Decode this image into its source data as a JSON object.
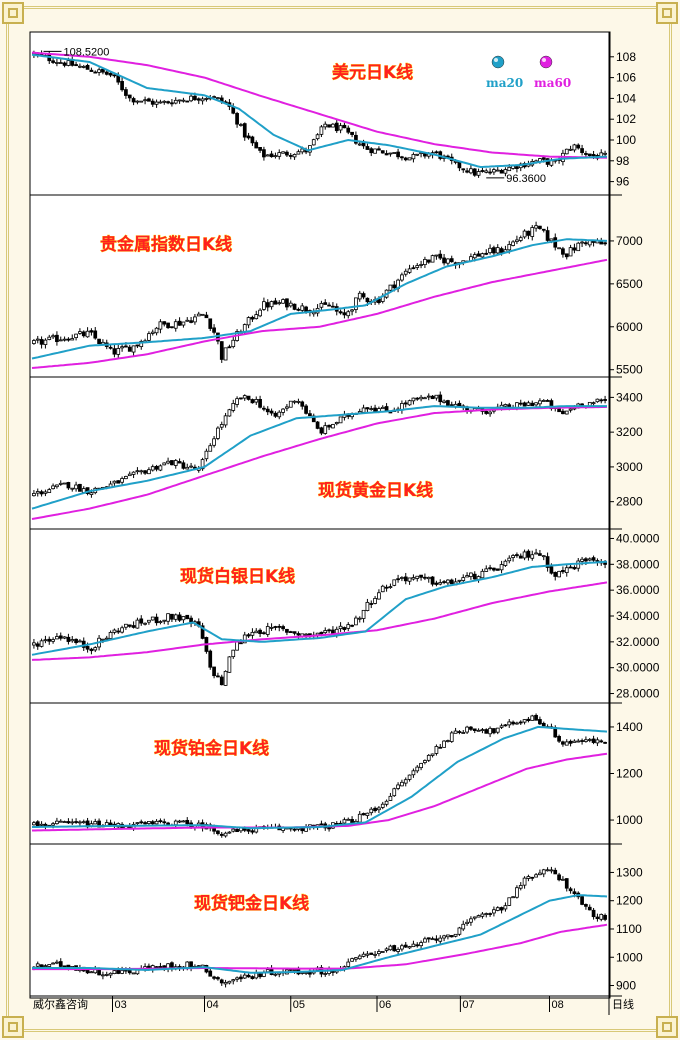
{
  "source_label": "威尔鑫咨询",
  "x_unit_label": "日线",
  "legend": [
    {
      "name": "ma20",
      "color": "#20a0c8"
    },
    {
      "name": "ma60",
      "color": "#e020e0"
    }
  ],
  "colors": {
    "candle": "#000000",
    "ma20": "#20a0c8",
    "ma60": "#e020e0",
    "title": "#ff2020"
  },
  "chart_data": [
    {
      "type": "candlestick",
      "title": "美元日K线",
      "ylim": [
        95,
        110
      ],
      "yticks": [
        96,
        98,
        100,
        102,
        104,
        106,
        108
      ],
      "annotations": [
        {
          "text": "108.5200",
          "x": 0.02,
          "y": 108.52
        },
        {
          "text": "96.3600",
          "x": 0.79,
          "y": 96.36
        }
      ],
      "close_path": [
        [
          0,
          108.3
        ],
        [
          0.05,
          107.5
        ],
        [
          0.1,
          106.8
        ],
        [
          0.14,
          106.2
        ],
        [
          0.17,
          104.0
        ],
        [
          0.22,
          103.5
        ],
        [
          0.27,
          104.0
        ],
        [
          0.31,
          104.2
        ],
        [
          0.34,
          103.5
        ],
        [
          0.37,
          100.5
        ],
        [
          0.4,
          98.5
        ],
        [
          0.44,
          98.7
        ],
        [
          0.48,
          99.0
        ],
        [
          0.51,
          101.5
        ],
        [
          0.54,
          101.0
        ],
        [
          0.58,
          99.2
        ],
        [
          0.62,
          98.8
        ],
        [
          0.66,
          98.3
        ],
        [
          0.7,
          98.8
        ],
        [
          0.73,
          97.8
        ],
        [
          0.77,
          96.8
        ],
        [
          0.8,
          96.9
        ],
        [
          0.84,
          97.5
        ],
        [
          0.88,
          98.0
        ],
        [
          0.91,
          97.8
        ],
        [
          0.94,
          99.5
        ],
        [
          0.97,
          98.5
        ],
        [
          1,
          98.4
        ]
      ],
      "ma20_path": [
        [
          0,
          108.2
        ],
        [
          0.1,
          107.5
        ],
        [
          0.2,
          105.0
        ],
        [
          0.3,
          104.3
        ],
        [
          0.36,
          103.0
        ],
        [
          0.42,
          100.5
        ],
        [
          0.48,
          99.0
        ],
        [
          0.55,
          100.0
        ],
        [
          0.62,
          99.5
        ],
        [
          0.7,
          98.6
        ],
        [
          0.78,
          97.4
        ],
        [
          0.85,
          97.6
        ],
        [
          0.92,
          98.2
        ],
        [
          1,
          98.4
        ]
      ],
      "ma60_path": [
        [
          0,
          108.4
        ],
        [
          0.1,
          108.0
        ],
        [
          0.2,
          107.2
        ],
        [
          0.3,
          106.0
        ],
        [
          0.4,
          104.2
        ],
        [
          0.5,
          102.5
        ],
        [
          0.6,
          100.8
        ],
        [
          0.7,
          99.6
        ],
        [
          0.8,
          98.8
        ],
        [
          0.9,
          98.4
        ],
        [
          1,
          98.3
        ]
      ]
    },
    {
      "type": "candlestick",
      "title": "贵金属指数日K线",
      "ylim": [
        5450,
        7500
      ],
      "yticks": [
        5500,
        6000,
        6500,
        7000
      ],
      "close_path": [
        [
          0,
          5800
        ],
        [
          0.05,
          5870
        ],
        [
          0.1,
          5920
        ],
        [
          0.14,
          5700
        ],
        [
          0.18,
          5780
        ],
        [
          0.22,
          6020
        ],
        [
          0.26,
          6050
        ],
        [
          0.3,
          6150
        ],
        [
          0.32,
          5900
        ],
        [
          0.33,
          5650
        ],
        [
          0.35,
          5850
        ],
        [
          0.4,
          6250
        ],
        [
          0.44,
          6280
        ],
        [
          0.48,
          6200
        ],
        [
          0.52,
          6250
        ],
        [
          0.54,
          6100
        ],
        [
          0.57,
          6350
        ],
        [
          0.6,
          6300
        ],
        [
          0.63,
          6500
        ],
        [
          0.66,
          6700
        ],
        [
          0.7,
          6800
        ],
        [
          0.74,
          6750
        ],
        [
          0.78,
          6850
        ],
        [
          0.82,
          6900
        ],
        [
          0.85,
          7050
        ],
        [
          0.88,
          7150
        ],
        [
          0.91,
          6950
        ],
        [
          0.93,
          6850
        ],
        [
          0.96,
          7000
        ],
        [
          1,
          6950
        ]
      ],
      "ma20_path": [
        [
          0,
          5630
        ],
        [
          0.1,
          5780
        ],
        [
          0.2,
          5820
        ],
        [
          0.3,
          5870
        ],
        [
          0.38,
          5950
        ],
        [
          0.45,
          6150
        ],
        [
          0.52,
          6200
        ],
        [
          0.58,
          6250
        ],
        [
          0.65,
          6500
        ],
        [
          0.72,
          6700
        ],
        [
          0.8,
          6820
        ],
        [
          0.87,
          6950
        ],
        [
          0.93,
          7020
        ],
        [
          1,
          7000
        ]
      ],
      "ma60_path": [
        [
          0,
          5520
        ],
        [
          0.1,
          5580
        ],
        [
          0.2,
          5680
        ],
        [
          0.3,
          5830
        ],
        [
          0.4,
          5950
        ],
        [
          0.5,
          6000
        ],
        [
          0.6,
          6150
        ],
        [
          0.7,
          6350
        ],
        [
          0.8,
          6520
        ],
        [
          0.9,
          6650
        ],
        [
          1,
          6780
        ]
      ]
    },
    {
      "type": "candlestick",
      "title": "现货黄金日K线",
      "ylim": [
        2660,
        3500
      ],
      "yticks": [
        2800,
        3000,
        3200,
        3400
      ],
      "close_path": [
        [
          0,
          2840
        ],
        [
          0.06,
          2900
        ],
        [
          0.1,
          2860
        ],
        [
          0.14,
          2900
        ],
        [
          0.19,
          2970
        ],
        [
          0.24,
          3030
        ],
        [
          0.29,
          2980
        ],
        [
          0.32,
          3200
        ],
        [
          0.36,
          3400
        ],
        [
          0.39,
          3380
        ],
        [
          0.42,
          3280
        ],
        [
          0.46,
          3400
        ],
        [
          0.5,
          3200
        ],
        [
          0.54,
          3280
        ],
        [
          0.58,
          3350
        ],
        [
          0.62,
          3320
        ],
        [
          0.66,
          3380
        ],
        [
          0.7,
          3400
        ],
        [
          0.74,
          3350
        ],
        [
          0.78,
          3320
        ],
        [
          0.82,
          3340
        ],
        [
          0.86,
          3360
        ],
        [
          0.89,
          3380
        ],
        [
          0.92,
          3300
        ],
        [
          0.95,
          3360
        ],
        [
          1,
          3380
        ]
      ],
      "ma20_path": [
        [
          0,
          2760
        ],
        [
          0.1,
          2860
        ],
        [
          0.2,
          2920
        ],
        [
          0.3,
          3000
        ],
        [
          0.38,
          3180
        ],
        [
          0.46,
          3280
        ],
        [
          0.54,
          3300
        ],
        [
          0.62,
          3320
        ],
        [
          0.7,
          3350
        ],
        [
          0.78,
          3340
        ],
        [
          0.86,
          3340
        ],
        [
          0.93,
          3350
        ],
        [
          1,
          3350
        ]
      ],
      "ma60_path": [
        [
          0,
          2700
        ],
        [
          0.1,
          2760
        ],
        [
          0.2,
          2840
        ],
        [
          0.3,
          2950
        ],
        [
          0.4,
          3060
        ],
        [
          0.5,
          3160
        ],
        [
          0.6,
          3250
        ],
        [
          0.7,
          3310
        ],
        [
          0.8,
          3330
        ],
        [
          0.9,
          3340
        ],
        [
          1,
          3345
        ]
      ]
    },
    {
      "type": "candlestick",
      "title": "现货白银日K线",
      "ylim": [
        27.5,
        40.5
      ],
      "yticks": [
        28.0,
        30.0,
        32.0,
        34.0,
        36.0,
        38.0,
        40.0
      ],
      "ytick_labels": [
        "28.0000",
        "30.0000",
        "32.0000",
        "34.0000",
        "36.0000",
        "38.0000",
        "40.0000"
      ],
      "close_path": [
        [
          0,
          31.8
        ],
        [
          0.05,
          32.5
        ],
        [
          0.1,
          31.5
        ],
        [
          0.15,
          33.0
        ],
        [
          0.2,
          33.6
        ],
        [
          0.25,
          34.0
        ],
        [
          0.29,
          33.2
        ],
        [
          0.31,
          30.0
        ],
        [
          0.33,
          28.8
        ],
        [
          0.35,
          31.5
        ],
        [
          0.38,
          32.8
        ],
        [
          0.43,
          33.0
        ],
        [
          0.48,
          32.5
        ],
        [
          0.52,
          32.8
        ],
        [
          0.56,
          33.5
        ],
        [
          0.6,
          35.8
        ],
        [
          0.64,
          37.0
        ],
        [
          0.68,
          36.8
        ],
        [
          0.72,
          36.5
        ],
        [
          0.76,
          37.0
        ],
        [
          0.8,
          37.5
        ],
        [
          0.84,
          38.5
        ],
        [
          0.88,
          39.0
        ],
        [
          0.91,
          37.2
        ],
        [
          0.94,
          37.8
        ],
        [
          0.97,
          38.6
        ],
        [
          1,
          38.2
        ]
      ],
      "ma20_path": [
        [
          0,
          31.0
        ],
        [
          0.1,
          31.8
        ],
        [
          0.2,
          32.8
        ],
        [
          0.28,
          33.5
        ],
        [
          0.33,
          32.2
        ],
        [
          0.4,
          32.0
        ],
        [
          0.5,
          32.3
        ],
        [
          0.58,
          32.8
        ],
        [
          0.65,
          35.3
        ],
        [
          0.72,
          36.3
        ],
        [
          0.8,
          37.0
        ],
        [
          0.87,
          37.8
        ],
        [
          0.93,
          38.0
        ],
        [
          1,
          38.2
        ]
      ],
      "ma60_path": [
        [
          0,
          30.6
        ],
        [
          0.1,
          30.8
        ],
        [
          0.2,
          31.2
        ],
        [
          0.3,
          31.8
        ],
        [
          0.4,
          32.2
        ],
        [
          0.5,
          32.5
        ],
        [
          0.6,
          32.9
        ],
        [
          0.7,
          33.8
        ],
        [
          0.8,
          35.0
        ],
        [
          0.9,
          35.9
        ],
        [
          1,
          36.6
        ]
      ]
    },
    {
      "type": "candlestick",
      "title": "现货铂金日K线",
      "ylim": [
        910,
        1490
      ],
      "yticks": [
        1000,
        1200,
        1400
      ],
      "close_path": [
        [
          0,
          980
        ],
        [
          0.08,
          985
        ],
        [
          0.16,
          975
        ],
        [
          0.24,
          990
        ],
        [
          0.3,
          975
        ],
        [
          0.33,
          945
        ],
        [
          0.38,
          960
        ],
        [
          0.46,
          965
        ],
        [
          0.52,
          975
        ],
        [
          0.56,
          1000
        ],
        [
          0.6,
          1050
        ],
        [
          0.64,
          1150
        ],
        [
          0.68,
          1250
        ],
        [
          0.72,
          1350
        ],
        [
          0.76,
          1400
        ],
        [
          0.8,
          1380
        ],
        [
          0.84,
          1420
        ],
        [
          0.87,
          1440
        ],
        [
          0.9,
          1400
        ],
        [
          0.92,
          1330
        ],
        [
          0.95,
          1340
        ],
        [
          1,
          1335
        ]
      ],
      "ma20_path": [
        [
          0,
          970
        ],
        [
          0.15,
          975
        ],
        [
          0.3,
          978
        ],
        [
          0.38,
          965
        ],
        [
          0.5,
          970
        ],
        [
          0.58,
          990
        ],
        [
          0.66,
          1100
        ],
        [
          0.74,
          1250
        ],
        [
          0.82,
          1350
        ],
        [
          0.88,
          1400
        ],
        [
          0.94,
          1390
        ],
        [
          1,
          1380
        ]
      ],
      "ma60_path": [
        [
          0,
          955
        ],
        [
          0.15,
          962
        ],
        [
          0.3,
          968
        ],
        [
          0.45,
          968
        ],
        [
          0.55,
          975
        ],
        [
          0.62,
          1000
        ],
        [
          0.7,
          1060
        ],
        [
          0.78,
          1140
        ],
        [
          0.86,
          1220
        ],
        [
          0.93,
          1260
        ],
        [
          1,
          1285
        ]
      ]
    },
    {
      "type": "candlestick",
      "title": "现货钯金日K线",
      "ylim": [
        870,
        1390
      ],
      "yticks": [
        900,
        1000,
        1100,
        1200,
        1300
      ],
      "close_path": [
        [
          0,
          965
        ],
        [
          0.06,
          975
        ],
        [
          0.1,
          950
        ],
        [
          0.14,
          945
        ],
        [
          0.2,
          960
        ],
        [
          0.27,
          975
        ],
        [
          0.3,
          960
        ],
        [
          0.33,
          910
        ],
        [
          0.37,
          930
        ],
        [
          0.42,
          950
        ],
        [
          0.48,
          950
        ],
        [
          0.53,
          955
        ],
        [
          0.57,
          1000
        ],
        [
          0.61,
          1030
        ],
        [
          0.65,
          1030
        ],
        [
          0.69,
          1060
        ],
        [
          0.74,
          1090
        ],
        [
          0.78,
          1150
        ],
        [
          0.82,
          1180
        ],
        [
          0.85,
          1260
        ],
        [
          0.88,
          1300
        ],
        [
          0.91,
          1300
        ],
        [
          0.94,
          1230
        ],
        [
          0.97,
          1160
        ],
        [
          1,
          1130
        ]
      ],
      "ma20_path": [
        [
          0,
          962
        ],
        [
          0.1,
          962
        ],
        [
          0.2,
          955
        ],
        [
          0.3,
          965
        ],
        [
          0.38,
          945
        ],
        [
          0.46,
          948
        ],
        [
          0.54,
          955
        ],
        [
          0.62,
          1000
        ],
        [
          0.7,
          1040
        ],
        [
          0.78,
          1080
        ],
        [
          0.85,
          1150
        ],
        [
          0.9,
          1200
        ],
        [
          0.95,
          1220
        ],
        [
          1,
          1215
        ]
      ],
      "ma60_path": [
        [
          0,
          958
        ],
        [
          0.15,
          958
        ],
        [
          0.3,
          962
        ],
        [
          0.45,
          960
        ],
        [
          0.55,
          960
        ],
        [
          0.65,
          975
        ],
        [
          0.75,
          1010
        ],
        [
          0.85,
          1050
        ],
        [
          0.92,
          1090
        ],
        [
          1,
          1115
        ]
      ]
    }
  ],
  "x_axis": {
    "labels": [
      "03",
      "04",
      "05",
      "06",
      "07",
      "08"
    ],
    "positions": [
      0.14,
      0.3,
      0.45,
      0.6,
      0.745,
      0.9
    ]
  }
}
